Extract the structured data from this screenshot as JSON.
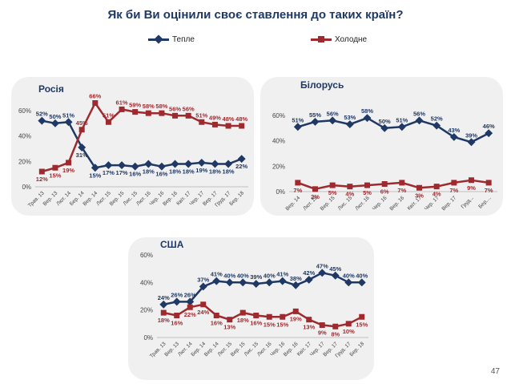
{
  "title": "Як би Ви оцінили своє ставлення до таких країн?",
  "page_number": "47",
  "colors": {
    "warm": "#1f3864",
    "cold": "#9e2a2f",
    "title": "#1f3864",
    "panel": "#f0f0f0"
  },
  "legend": {
    "warm": "Тепле",
    "cold": "Холодне"
  },
  "chart_data": [
    {
      "type": "line",
      "title": "Росія",
      "ylim": [
        0,
        60
      ],
      "yticks": [
        "0%",
        "20%",
        "40%",
        "60%"
      ],
      "tick_labels": [
        "Трав. 13",
        "Вер. 13",
        "Лют. 14",
        "Бер. 14",
        "Вер. 14",
        "Лют. 15",
        "Вер. 15",
        "Лис. 15",
        "Лют. 16",
        "Чер. 16",
        "Вер. 16",
        "Квіт. 17",
        "Чер. 17",
        "Вер. 17",
        "Груд. 17",
        "Бер. 18"
      ],
      "series": [
        {
          "name": "Тепле",
          "values": [
            52,
            50,
            51,
            31,
            15,
            17,
            17,
            16,
            18,
            16,
            18,
            18,
            19,
            18,
            18,
            22
          ],
          "labels": [
            "52%",
            "50%",
            "51%",
            "31%",
            "15%",
            "17%",
            "17%",
            "16%",
            "18%",
            "16%",
            "18%",
            "18%",
            "19%",
            "18%",
            "18%",
            "22%"
          ]
        },
        {
          "name": "Холодне",
          "values": [
            12,
            15,
            19,
            45,
            66,
            51,
            61,
            59,
            58,
            58,
            56,
            56,
            51,
            49,
            48,
            48
          ],
          "labels": [
            "12%",
            "15%",
            "19%",
            "45%",
            "66%",
            "51%",
            "61%",
            "59%",
            "58%",
            "58%",
            "56%",
            "56%",
            "51%",
            "49%",
            "48%",
            "48%"
          ]
        }
      ]
    },
    {
      "type": "line",
      "title": "Білорусь",
      "ylim": [
        0,
        60
      ],
      "yticks": [
        "0%",
        "20%",
        "40%",
        "60%"
      ],
      "tick_labels": [
        "Вер. 14",
        "Лют. 15",
        "Вер. 15",
        "Лис. 15",
        "Лют. 16",
        "Чер. 16",
        "Вер. 16",
        "Квіт. 17",
        "Чер. 17",
        "Вер. 17",
        "Груд...",
        "Бер...."
      ],
      "series": [
        {
          "name": "Тепле",
          "values": [
            51,
            55,
            56,
            53,
            58,
            50,
            51,
            56,
            52,
            43,
            39,
            46
          ],
          "labels": [
            "51%",
            "55%",
            "56%",
            "53%",
            "58%",
            "50%",
            "51%",
            "56%",
            "52%",
            "43%",
            "39%",
            "46%"
          ]
        },
        {
          "name": "Холодне",
          "values": [
            7,
            2,
            5,
            4,
            5,
            6,
            7,
            3,
            4,
            7,
            9,
            7
          ],
          "labels": [
            "7%",
            "2%",
            "5%",
            "4%",
            "5%",
            "6%",
            "7%",
            "3%",
            "4%",
            "7%",
            "9%",
            "7%"
          ]
        }
      ]
    },
    {
      "type": "line",
      "title": "США",
      "ylim": [
        0,
        60
      ],
      "yticks": [
        "0%",
        "20%",
        "40%",
        "60%"
      ],
      "tick_labels": [
        "Трав. 13",
        "Вер. 13",
        "Лют. 14",
        "Бер. 14",
        "Вер. 14",
        "Лют. 15",
        "Вер. 15",
        "Лис. 15",
        "Лют. 16",
        "Чер. 16",
        "Вер. 16",
        "Квіт. 17",
        "Чер. 17",
        "Вер. 17",
        "Груд. 17",
        "Бер. 18"
      ],
      "series": [
        {
          "name": "Тепле",
          "values": [
            24,
            26,
            26,
            37,
            41,
            40,
            40,
            39,
            40,
            41,
            38,
            42,
            47,
            45,
            40,
            40
          ],
          "labels": [
            "24%",
            "26%",
            "26%",
            "37%",
            "41%",
            "40%",
            "40%",
            "39%",
            "40%",
            "41%",
            "38%",
            "42%",
            "47%",
            "45%",
            "40%",
            "40%"
          ]
        },
        {
          "name": "Холодне",
          "values": [
            18,
            16,
            22,
            24,
            16,
            13,
            18,
            16,
            15,
            15,
            19,
            13,
            9,
            8,
            10,
            15
          ],
          "labels": [
            "18%",
            "16%",
            "22%",
            "24%",
            "16%",
            "13%",
            "18%",
            "16%",
            "15%",
            "15%",
            "19%",
            "13%",
            "9%",
            "8%",
            "10%",
            "15%"
          ]
        }
      ]
    }
  ]
}
